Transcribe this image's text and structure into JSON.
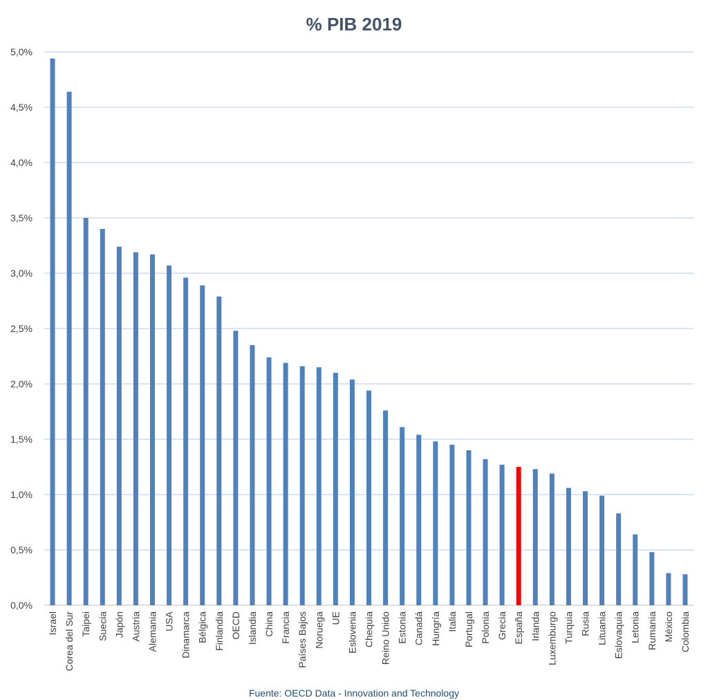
{
  "chart_data": {
    "type": "bar",
    "title": "% PIB 2019",
    "xlabel": "",
    "ylabel": "",
    "ylim": [
      0,
      5.0
    ],
    "y_ticks": [
      "0,0%",
      "0,5%",
      "1,0%",
      "1,5%",
      "2,0%",
      "2,5%",
      "3,0%",
      "3,5%",
      "4,0%",
      "4,5%",
      "5,0%"
    ],
    "grid": true,
    "legend": "none",
    "categories": [
      "Israel",
      "Corea del Sur",
      "Taipei",
      "Suecia",
      "Japón",
      "Austria",
      "Alemania",
      "USA",
      "Dinamarca",
      "Bélgica",
      "Finlandia",
      "OECD",
      "Islandia",
      "China",
      "Francia",
      "Países Bajos",
      "Noruega",
      "UE",
      "Eslovenia",
      "Chequia",
      "Reino Unido",
      "Estonia",
      "Canadá",
      "Hungría",
      "Italia",
      "Portugal",
      "Polonia",
      "Grecia",
      "España",
      "Irlanda",
      "Luxemburgo",
      "Turquia",
      "Rusia",
      "Lituania",
      "Eslovaquia",
      "Letonia",
      "Rumania",
      "México",
      "Colombia"
    ],
    "values": [
      4.94,
      4.64,
      3.5,
      3.4,
      3.24,
      3.19,
      3.17,
      3.07,
      2.96,
      2.89,
      2.79,
      2.48,
      2.35,
      2.24,
      2.19,
      2.16,
      2.15,
      2.1,
      2.04,
      1.94,
      1.76,
      1.61,
      1.54,
      1.48,
      1.45,
      1.4,
      1.32,
      1.27,
      1.25,
      1.23,
      1.19,
      1.06,
      1.03,
      0.99,
      0.83,
      0.64,
      0.48,
      0.29,
      0.28
    ],
    "colors": {
      "bar": "#4f81bd",
      "highlight": "#ff0000",
      "grid": "#b4c7e7",
      "axis": "#bfbfbf"
    },
    "highlight_category": "España",
    "source": "Fuente: OECD Data - Innovation and Technology"
  }
}
